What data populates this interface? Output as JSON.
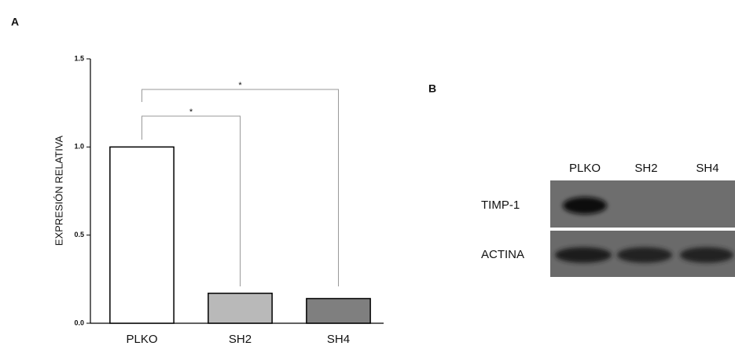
{
  "chart_data": {
    "type": "bar",
    "panel_label": "A",
    "y_label": "EXPRESIÓN RELATIVA",
    "categories": [
      "PLKO",
      "SH2",
      "SH4"
    ],
    "values": [
      1.0,
      0.17,
      0.14
    ],
    "colors": [
      "#ffffff",
      "#b9b9b9",
      "#7f7f7f"
    ],
    "ylim": [
      0,
      1.5
    ],
    "yticks": [
      {
        "value": 0,
        "label": "0.0"
      },
      0.5,
      {
        "value": 1,
        "label": "1.0"
      },
      1.5
    ],
    "annotations": [
      "*",
      "*"
    ]
  },
  "blot": {
    "panel_label": "B",
    "lanes": [
      "PLKO",
      "SH2",
      "SH4"
    ],
    "rows": [
      "TIMP-1",
      "ACTINA"
    ]
  }
}
